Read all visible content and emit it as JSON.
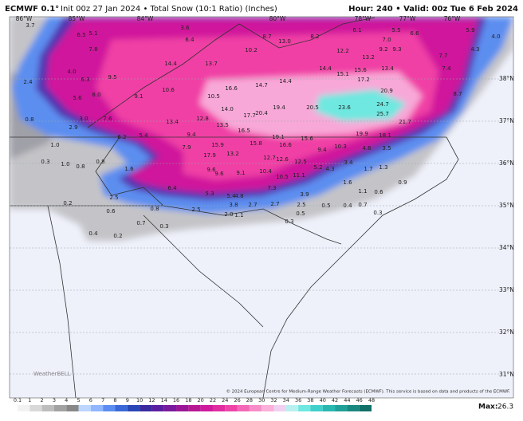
{
  "header": {
    "model": "ECMWF 0.1°",
    "description": "Init 00z 27 Jan 2024 • Total Snow (10:1 Ratio) (Inches)",
    "valid": "Hour: 240 • Valid: 00z Tue 6 Feb 2024"
  },
  "map": {
    "longitudes": [
      "86°W",
      "85°W",
      "84°W",
      "80°W",
      "78°W",
      "77°W",
      "76°W"
    ],
    "latitudes": [
      "38°N",
      "37°N",
      "36°N",
      "35°N",
      "34°N",
      "33°N",
      "32°N",
      "31°N"
    ],
    "labels": [
      "3.7",
      "6.5",
      "5.1",
      "3.6",
      "6.4",
      "8.7",
      "13.0",
      "8.2",
      "6.1",
      "5.5",
      "6.6",
      "7.0",
      "5.9",
      "4.0",
      "7.8",
      "10.2",
      "12.2",
      "13.2",
      "9.2",
      "9.3",
      "7.7",
      "7.4",
      "4.3",
      "14.4",
      "13.7",
      "14.4",
      "15.1",
      "15.6",
      "13.4",
      "17.2",
      "2.4",
      "4.0",
      "6.3",
      "9.5",
      "16.6",
      "14.7",
      "14.4",
      "20.9",
      "10.6",
      "9.1",
      "8.0",
      "5.6",
      "10.5",
      "14.0",
      "19.4",
      "20.5",
      "23.6",
      "24.7",
      "25.7",
      "8.7",
      "17.7",
      "20.4",
      "12.8",
      "13.4",
      "3.0",
      "7.6",
      "13.5",
      "16.5",
      "21.7",
      "0.8",
      "2.9",
      "19.1",
      "15.6",
      "19.9",
      "18.1",
      "6.2",
      "5.4",
      "9.4",
      "1.0",
      "15.9",
      "15.8",
      "16.6",
      "10.3",
      "9.4",
      "7.9",
      "17.9",
      "13.2",
      "12.7",
      "12.6",
      "12.5",
      "3.4",
      "4.6",
      "3.5",
      "0.3",
      "1.0",
      "0.8",
      "0.8",
      "1.6",
      "9.6",
      "9.6",
      "9.1",
      "10.4",
      "10.5",
      "11.1",
      "5.2",
      "4.3",
      "1.7",
      "1.3",
      "6.4",
      "5.3",
      "5.4",
      "4.8",
      "7.3",
      "3.9",
      "1.6",
      "1.1",
      "0.6",
      "0.9",
      "2.5",
      "3.8",
      "2.7",
      "2.7",
      "2.5",
      "0.5",
      "0.4",
      "0.7",
      "0.2",
      "0.6",
      "0.8",
      "2.5",
      "2.0",
      "1.1",
      "0.5",
      "0.3",
      "0.7",
      "0.3",
      "0.4",
      "0.2",
      "0.3"
    ],
    "logo": "WeatherBELL",
    "credit": "© 2024 European Centre for Medium-Range Weather Forecasts (ECMWF). This service is based on data and products of the ECMWF."
  },
  "colorbar": {
    "ticks": [
      0.1,
      1,
      2,
      3,
      4,
      5,
      6,
      7,
      8,
      9,
      10,
      12,
      14,
      16,
      18,
      20,
      22,
      24,
      26,
      28,
      30,
      32,
      34,
      36,
      38,
      40,
      42,
      44,
      46,
      48
    ]
  },
  "footer": {
    "max_label": "Max:",
    "max_value": "26.3"
  }
}
